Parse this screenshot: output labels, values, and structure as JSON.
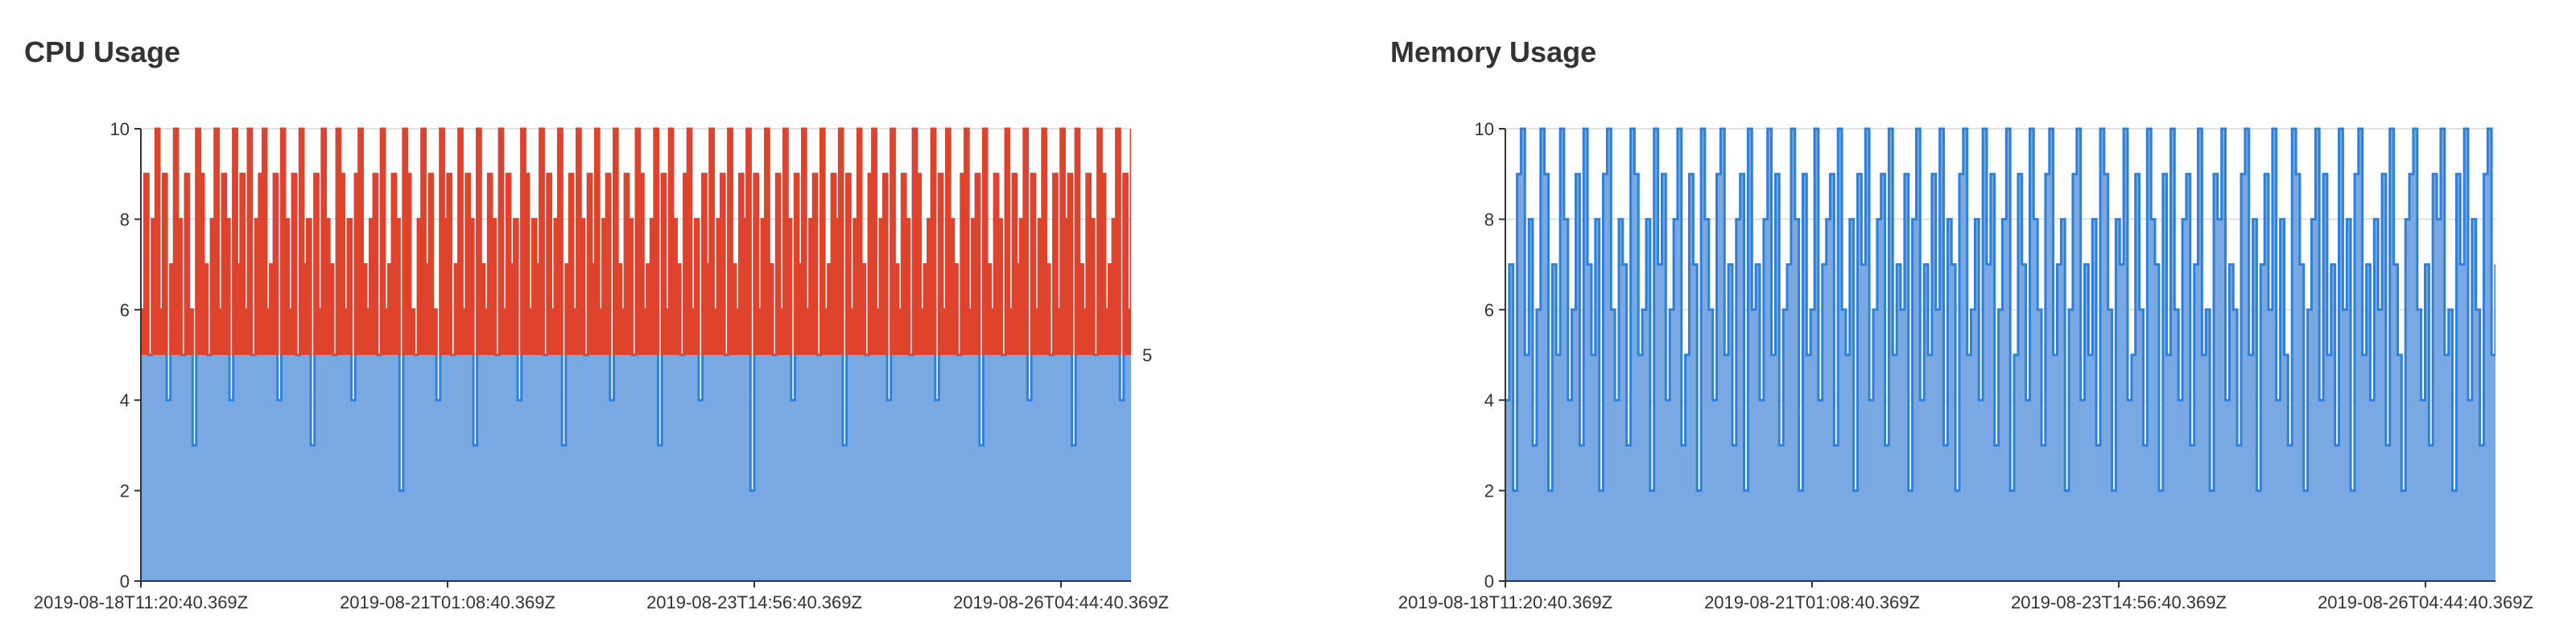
{
  "panels": {
    "cpu": {
      "title": "CPU Usage"
    },
    "memory": {
      "title": "Memory Usage"
    }
  },
  "chart_data": [
    {
      "type": "area",
      "title": "CPU Usage",
      "x_ticks": [
        "2019-08-18T11:20:40.369Z",
        "2019-08-21T01:08:40.369Z",
        "2019-08-23T14:56:40.369Z",
        "2019-08-26T04:44:40.369Z"
      ],
      "x_range": [
        "2019-08-18T11:20:40.369Z",
        "2019-08-28T00:00:00.000Z"
      ],
      "y_ticks": [
        "0",
        "2",
        "4",
        "6",
        "8",
        "10"
      ],
      "ylim": [
        0,
        10
      ],
      "grid": true,
      "threshold": {
        "value": 5,
        "label": "5",
        "above_color": "#e0432c"
      },
      "colors": {
        "line": "#2f80d9",
        "fill": "#7aa8e3",
        "above_threshold": "#e0432c"
      },
      "series": [
        {
          "values": [
            6,
            9,
            5,
            8,
            10,
            6,
            9,
            4,
            7,
            10,
            8,
            5,
            9,
            6,
            3,
            10,
            9,
            7,
            5,
            8,
            10,
            6,
            9,
            8,
            4,
            10,
            7,
            9,
            6,
            10,
            5,
            8,
            9,
            10,
            6,
            7,
            9,
            4,
            10,
            8,
            6,
            9,
            5,
            10,
            7,
            8,
            3,
            9,
            6,
            10,
            8,
            7,
            5,
            10,
            9,
            6,
            8,
            4,
            9,
            10,
            7,
            6,
            8,
            9,
            5,
            10,
            6,
            7,
            9,
            8,
            2,
            10,
            9,
            6,
            5,
            8,
            10,
            7,
            9,
            6,
            4,
            10,
            8,
            9,
            5,
            7,
            10,
            6,
            9,
            8,
            3,
            10,
            7,
            6,
            9,
            8,
            5,
            10,
            6,
            9,
            7,
            8,
            4,
            10,
            9,
            6,
            8,
            7,
            10,
            5,
            9,
            6,
            8,
            10,
            3,
            7,
            9,
            6,
            10,
            8,
            5,
            9,
            7,
            10,
            6,
            8,
            9,
            4,
            10,
            7,
            6,
            9,
            8,
            5,
            10,
            9,
            6,
            7,
            8,
            10,
            3,
            9,
            6,
            10,
            8,
            7,
            5,
            9,
            10,
            6,
            8,
            4,
            9,
            7,
            10,
            6,
            8,
            9,
            5,
            10,
            7,
            6,
            9,
            8,
            10,
            2,
            9,
            6,
            8,
            10,
            7,
            5,
            9,
            6,
            10,
            8,
            4,
            9,
            7,
            10,
            6,
            8,
            9,
            5,
            10,
            6,
            7,
            9,
            8,
            10,
            3,
            9,
            6,
            8,
            10,
            7,
            5,
            9,
            10,
            6,
            8,
            9,
            4,
            10,
            7,
            6,
            9,
            8,
            5,
            10,
            9,
            6,
            7,
            8,
            10,
            4,
            9,
            6,
            10,
            8,
            7,
            5,
            9,
            10,
            6,
            8,
            9,
            3,
            10,
            7,
            6,
            9,
            8,
            5,
            10,
            6,
            9,
            7,
            8,
            10,
            4,
            9,
            6,
            8,
            10,
            7,
            5,
            9,
            6,
            10,
            8,
            9,
            3,
            10,
            7,
            6,
            9,
            8,
            5,
            10,
            9,
            6,
            7,
            8,
            10,
            4,
            9,
            6,
            10
          ]
        }
      ]
    },
    {
      "type": "area",
      "title": "Memory Usage",
      "x_ticks": [
        "2019-08-18T11:20:40.369Z",
        "2019-08-21T01:08:40.369Z",
        "2019-08-23T14:56:40.369Z",
        "2019-08-26T04:44:40.369Z"
      ],
      "x_range": [
        "2019-08-18T11:20:40.369Z",
        "2019-08-28T00:00:00.000Z"
      ],
      "y_ticks": [
        "0",
        "2",
        "4",
        "6",
        "8",
        "10"
      ],
      "ylim": [
        0,
        10
      ],
      "grid": true,
      "colors": {
        "line": "#2f80d9",
        "fill": "#7aa8e3"
      },
      "series": [
        {
          "values": [
            4,
            7,
            2,
            9,
            10,
            5,
            8,
            3,
            6,
            10,
            9,
            2,
            7,
            5,
            10,
            8,
            4,
            6,
            9,
            3,
            10,
            7,
            5,
            8,
            2,
            9,
            10,
            6,
            4,
            8,
            7,
            3,
            10,
            9,
            5,
            6,
            8,
            2,
            10,
            7,
            9,
            4,
            6,
            8,
            10,
            3,
            5,
            9,
            7,
            2,
            10,
            8,
            6,
            4,
            9,
            10,
            5,
            7,
            3,
            8,
            9,
            2,
            10,
            6,
            7,
            4,
            8,
            10,
            5,
            9,
            3,
            6,
            7,
            10,
            8,
            2,
            9,
            5,
            6,
            10,
            4,
            7,
            8,
            9,
            3,
            10,
            6,
            5,
            8,
            2,
            9,
            7,
            10,
            4,
            6,
            8,
            9,
            3,
            10,
            5,
            7,
            6,
            9,
            2,
            8,
            10,
            4,
            7,
            5,
            9,
            6,
            10,
            3,
            8,
            7,
            2,
            9,
            10,
            5,
            6,
            8,
            4,
            10,
            7,
            9,
            3,
            6,
            8,
            10,
            2,
            5,
            9,
            7,
            4,
            10,
            8,
            6,
            3,
            9,
            10,
            5,
            7,
            8,
            2,
            6,
            9,
            10,
            4,
            7,
            5,
            8,
            3,
            10,
            9,
            6,
            2,
            8,
            7,
            10,
            4,
            5,
            9,
            6,
            3,
            10,
            8,
            7,
            2,
            9,
            5,
            10,
            6,
            4,
            8,
            9,
            3,
            7,
            10,
            5,
            6,
            2,
            9,
            8,
            10,
            4,
            7,
            6,
            3,
            9,
            10,
            5,
            8,
            2,
            7,
            9,
            6,
            10,
            4,
            8,
            5,
            3,
            10,
            9,
            7,
            2,
            6,
            8,
            10,
            4,
            9,
            5,
            7,
            3,
            10,
            6,
            8,
            2,
            9,
            10,
            5,
            7,
            4,
            8,
            6,
            9,
            3,
            10,
            7,
            5,
            2,
            8,
            9,
            10,
            6,
            4,
            7,
            3,
            9,
            8,
            10,
            5,
            6,
            2,
            9,
            7,
            10,
            4,
            8,
            6,
            3,
            9,
            10,
            5,
            7
          ]
        }
      ]
    }
  ]
}
